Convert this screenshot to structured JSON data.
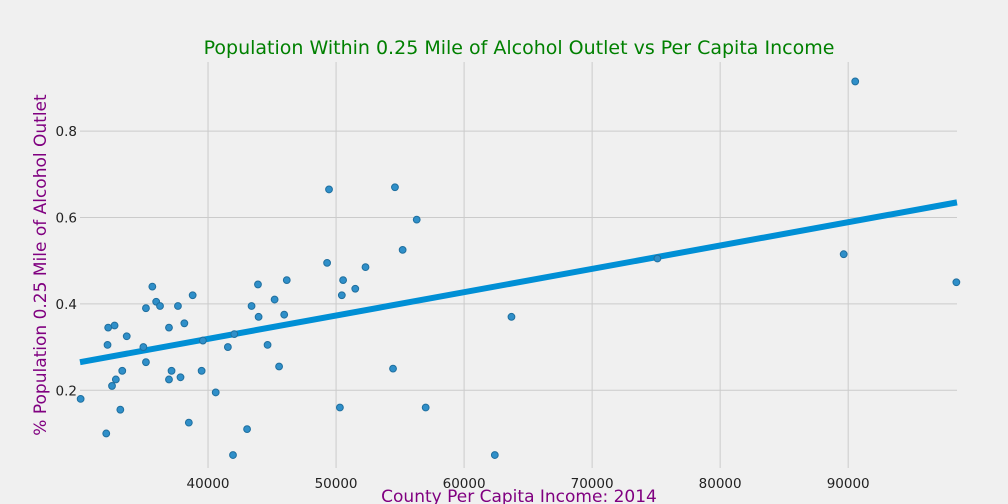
{
  "chart_data": {
    "type": "scatter",
    "title": "Population Within 0.25 Mile of Alcohol Outlet vs Per Capita Income",
    "xlabel": "County Per Capita Income: 2014",
    "ylabel": "% Population 0.25 Mile of Alcohol Outlet",
    "xlim": [
      30000,
      98500
    ],
    "ylim": [
      0.02,
      0.96
    ],
    "x_ticks": [
      40000,
      50000,
      60000,
      70000,
      80000,
      90000
    ],
    "y_ticks": [
      0.2,
      0.4,
      0.6,
      0.8
    ],
    "grid": true,
    "colors": {
      "background": "#f0f0f0",
      "points": "#2f8fc9",
      "point_edge": "#1f6f9f",
      "trend_line": "#008fd5",
      "title": "#008000",
      "axis_labels": "#800080"
    },
    "series": [
      {
        "points": [
          [
            30050,
            0.18
          ],
          [
            32050,
            0.1
          ],
          [
            32150,
            0.305
          ],
          [
            32200,
            0.345
          ],
          [
            32500,
            0.21
          ],
          [
            32700,
            0.35
          ],
          [
            32800,
            0.225
          ],
          [
            33150,
            0.155
          ],
          [
            33300,
            0.245
          ],
          [
            33650,
            0.325
          ],
          [
            34950,
            0.3
          ],
          [
            35150,
            0.265
          ],
          [
            35150,
            0.39
          ],
          [
            35650,
            0.44
          ],
          [
            35950,
            0.405
          ],
          [
            36250,
            0.395
          ],
          [
            36950,
            0.345
          ],
          [
            36950,
            0.225
          ],
          [
            37150,
            0.245
          ],
          [
            37650,
            0.395
          ],
          [
            37850,
            0.23
          ],
          [
            38150,
            0.355
          ],
          [
            38500,
            0.125
          ],
          [
            38800,
            0.42
          ],
          [
            39500,
            0.245
          ],
          [
            39600,
            0.315
          ],
          [
            40600,
            0.195
          ],
          [
            41550,
            0.3
          ],
          [
            41950,
            0.05
          ],
          [
            42050,
            0.33
          ],
          [
            43050,
            0.11
          ],
          [
            43400,
            0.395
          ],
          [
            43900,
            0.445
          ],
          [
            43950,
            0.37
          ],
          [
            44650,
            0.305
          ],
          [
            45200,
            0.41
          ],
          [
            45550,
            0.255
          ],
          [
            45950,
            0.375
          ],
          [
            46150,
            0.455
          ],
          [
            49300,
            0.495
          ],
          [
            49450,
            0.665
          ],
          [
            50300,
            0.16
          ],
          [
            50450,
            0.42
          ],
          [
            50550,
            0.455
          ],
          [
            51500,
            0.435
          ],
          [
            52300,
            0.485
          ],
          [
            54450,
            0.25
          ],
          [
            54600,
            0.67
          ],
          [
            55200,
            0.525
          ],
          [
            56300,
            0.595
          ],
          [
            57000,
            0.16
          ],
          [
            62400,
            0.05
          ],
          [
            63700,
            0.37
          ],
          [
            75100,
            0.505
          ],
          [
            89650,
            0.515
          ],
          [
            90550,
            0.915
          ],
          [
            98450,
            0.45
          ]
        ]
      }
    ],
    "trend_line": {
      "x": [
        30000,
        98500
      ],
      "y": [
        0.265,
        0.635
      ]
    }
  }
}
